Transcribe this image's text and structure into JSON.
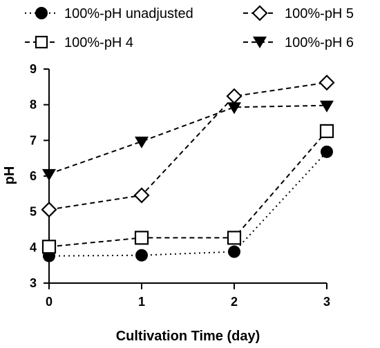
{
  "chart_data": {
    "type": "line",
    "xlabel": "Cultivation Time (day)",
    "ylabel": "pH",
    "x": [
      0,
      1,
      2,
      3
    ],
    "xlim": [
      0,
      3
    ],
    "ylim": [
      3,
      9
    ],
    "xticks": [
      "0",
      "1",
      "2",
      "3"
    ],
    "yticks": [
      "3",
      "4",
      "5",
      "6",
      "7",
      "8",
      "9"
    ],
    "grid": false,
    "legend_position": "top",
    "series": [
      {
        "name": "100%-pH unadjusted",
        "marker": "circle",
        "line": "dotted",
        "values": [
          3.76,
          3.78,
          3.88,
          6.68
        ]
      },
      {
        "name": "100%-pH 4",
        "marker": "square-open",
        "line": "dashed",
        "values": [
          4.02,
          4.27,
          4.27,
          7.26
        ]
      },
      {
        "name": "100%-pH 5",
        "marker": "diamond-open",
        "line": "dashed",
        "values": [
          5.06,
          5.46,
          8.24,
          8.62
        ]
      },
      {
        "name": "100%-pH 6",
        "marker": "triangle-down",
        "line": "dashed",
        "values": [
          6.06,
          6.97,
          7.93,
          7.98
        ]
      }
    ],
    "colors": {
      "line": "#000000",
      "marker_fill": "#000000",
      "open_marker_fill": "#ffffff"
    }
  }
}
